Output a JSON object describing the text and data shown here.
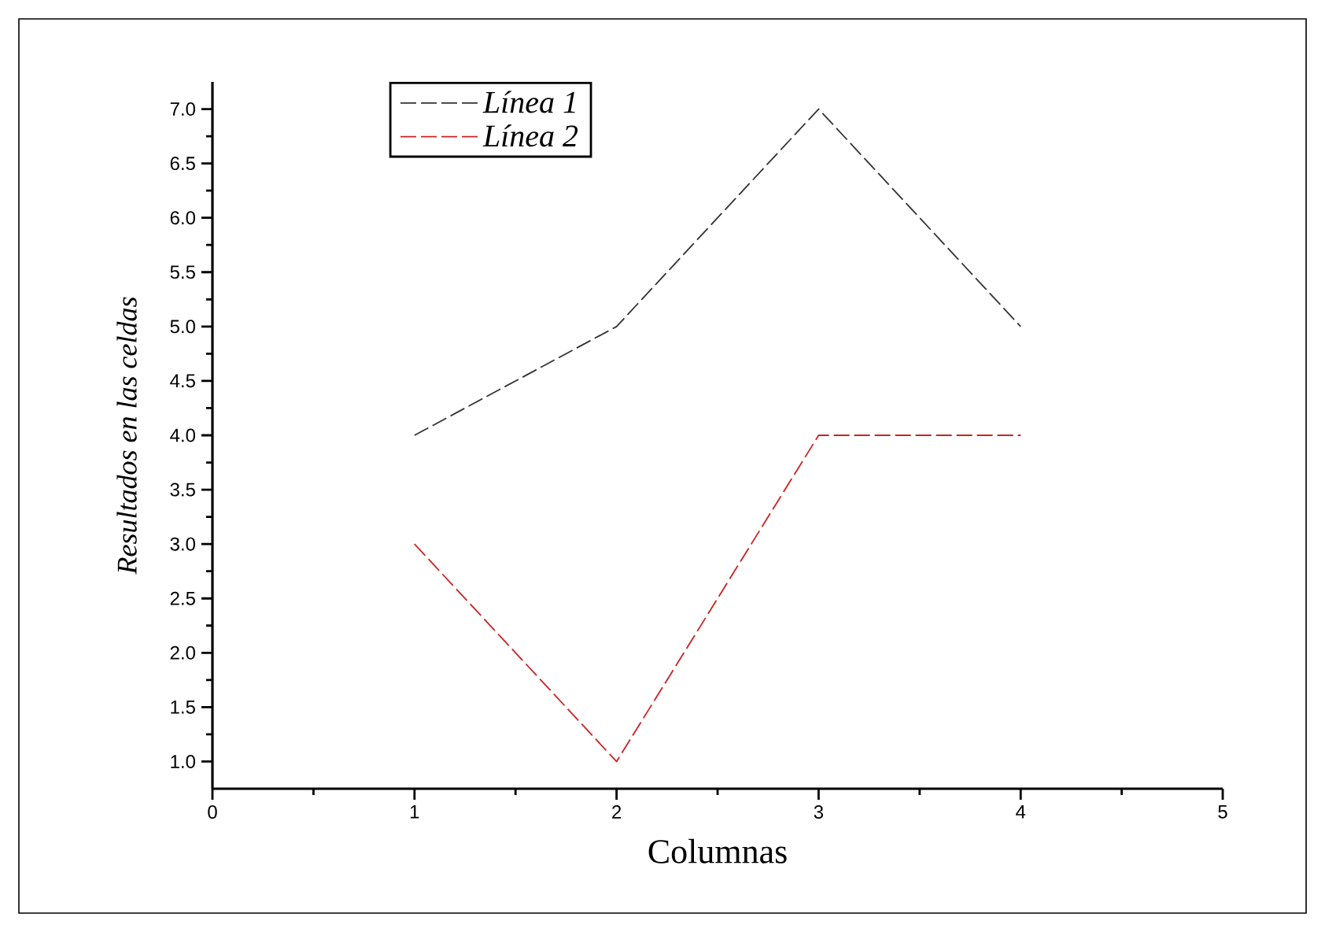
{
  "chart_data": {
    "type": "line",
    "xlabel": "Columnas",
    "ylabel": "Resultados en las celdas",
    "x": [
      1,
      2,
      3,
      4
    ],
    "series": [
      {
        "name": "Línea 1",
        "color": "#333333",
        "values": [
          4.0,
          5.0,
          7.0,
          5.0
        ]
      },
      {
        "name": "Línea 2",
        "color": "#cc2222",
        "values": [
          3.0,
          1.0,
          4.0,
          4.0
        ]
      }
    ],
    "xlim": [
      0,
      5
    ],
    "xticks": [
      0,
      1,
      2,
      3,
      4,
      5
    ],
    "ylim": [
      0.75,
      7.25
    ],
    "yticks": [
      {
        "value": 1.0,
        "label": "1.0"
      },
      {
        "value": 1.5,
        "label": "1.5"
      },
      {
        "value": 2.0,
        "label": "2.0"
      },
      {
        "value": 2.5,
        "label": "2.5"
      },
      {
        "value": 3.0,
        "label": "3.0"
      },
      {
        "value": 3.5,
        "label": "3.5"
      },
      {
        "value": 4.0,
        "label": "4.0"
      },
      {
        "value": 4.5,
        "label": "4.5"
      },
      {
        "value": 5.0,
        "label": "5.0"
      },
      {
        "value": 5.5,
        "label": "5.5"
      },
      {
        "value": 6.0,
        "label": "6.0"
      },
      {
        "value": 6.5,
        "label": "6.5"
      },
      {
        "value": 7.0,
        "label": "7.0"
      }
    ],
    "legend": "top left",
    "marker": "none",
    "line_style": "dashed",
    "grid": false
  }
}
